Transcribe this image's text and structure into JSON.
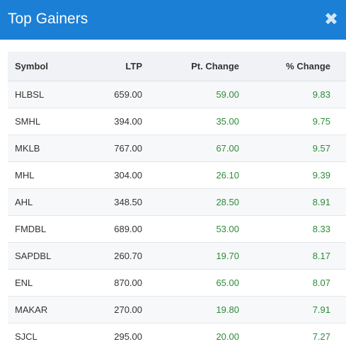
{
  "modal": {
    "title": "Top Gainers",
    "close_glyph": "✖"
  },
  "table": {
    "headers": {
      "symbol": "Symbol",
      "ltp": "LTP",
      "pt_change": "Pt. Change",
      "pct_change": "% Change"
    },
    "rows": [
      {
        "symbol": "HLBSL",
        "ltp": "659.00",
        "pt_change": "59.00",
        "pct_change": "9.83"
      },
      {
        "symbol": "SMHL",
        "ltp": "394.00",
        "pt_change": "35.00",
        "pct_change": "9.75"
      },
      {
        "symbol": "MKLB",
        "ltp": "767.00",
        "pt_change": "67.00",
        "pct_change": "9.57"
      },
      {
        "symbol": "MHL",
        "ltp": "304.00",
        "pt_change": "26.10",
        "pct_change": "9.39"
      },
      {
        "symbol": "AHL",
        "ltp": "348.50",
        "pt_change": "28.50",
        "pct_change": "8.91"
      },
      {
        "symbol": "FMDBL",
        "ltp": "689.00",
        "pt_change": "53.00",
        "pct_change": "8.33"
      },
      {
        "symbol": "SAPDBL",
        "ltp": "260.70",
        "pt_change": "19.70",
        "pct_change": "8.17"
      },
      {
        "symbol": "ENL",
        "ltp": "870.00",
        "pt_change": "65.00",
        "pct_change": "8.07"
      },
      {
        "symbol": "MAKAR",
        "ltp": "270.00",
        "pt_change": "19.80",
        "pct_change": "7.91"
      },
      {
        "symbol": "SJCL",
        "ltp": "295.00",
        "pt_change": "20.00",
        "pct_change": "7.27"
      }
    ]
  },
  "colors": {
    "header_bg": "#1b7fd6",
    "gain": "#2e8b3a"
  },
  "icons": {
    "close": "close-icon"
  }
}
